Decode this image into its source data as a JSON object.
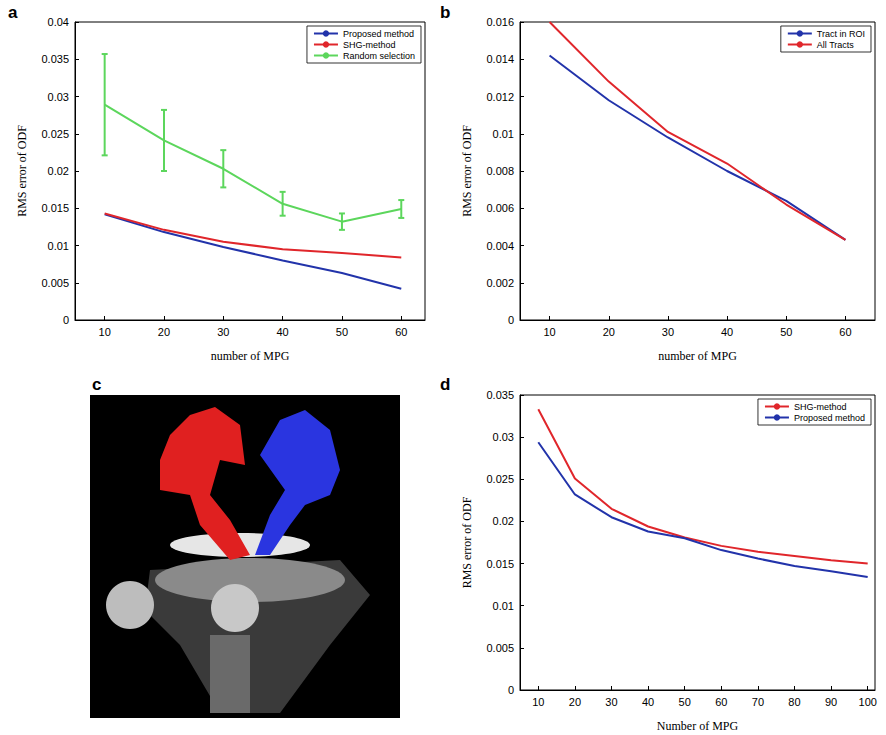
{
  "chart_data": [
    {
      "type": "line",
      "panel": "a",
      "x_label": "number of MPG",
      "y_label": "RMS error of ODF",
      "x": [
        10,
        20,
        30,
        40,
        50,
        60
      ],
      "series": [
        {
          "name": "Proposed method",
          "color": "#2233aa",
          "values": [
            0.0142,
            0.0118,
            0.0098,
            0.008,
            0.0063,
            0.0042
          ]
        },
        {
          "name": "SHG-method",
          "color": "#e0262b",
          "values": [
            0.0143,
            0.0121,
            0.0105,
            0.0095,
            0.009,
            0.0084
          ]
        },
        {
          "name": "Random selection",
          "color": "#5cd65c",
          "values": [
            0.0289,
            0.0241,
            0.0203,
            0.0156,
            0.0132,
            0.0149
          ],
          "errors": [
            0.0068,
            0.0041,
            0.0025,
            0.0016,
            0.0011,
            0.0012
          ]
        }
      ],
      "xlim": [
        5,
        64
      ],
      "xticks": [
        10,
        20,
        30,
        40,
        50,
        60
      ],
      "ylim": [
        0,
        0.04
      ],
      "yticks": [
        0,
        0.005,
        0.01,
        0.015,
        0.02,
        0.025,
        0.03,
        0.035,
        0.04
      ],
      "grid": false,
      "legend": "upper right"
    },
    {
      "type": "line",
      "panel": "b",
      "x_label": "number of MPG",
      "y_label": "RMS error of ODF",
      "x": [
        10,
        20,
        30,
        40,
        50,
        60
      ],
      "series": [
        {
          "name": "Tract in ROI",
          "color": "#2233aa",
          "values": [
            0.0142,
            0.0118,
            0.0098,
            0.008,
            0.0064,
            0.0043
          ]
        },
        {
          "name": "All Tracts",
          "color": "#e0262b",
          "values": [
            0.016,
            0.0128,
            0.0101,
            0.0084,
            0.0062,
            0.0043
          ]
        }
      ],
      "xlim": [
        5,
        65
      ],
      "xticks": [
        10,
        20,
        30,
        40,
        50,
        60
      ],
      "ylim": [
        0,
        0.016
      ],
      "yticks": [
        0,
        0.002,
        0.004,
        0.006,
        0.008,
        0.01,
        0.012,
        0.014,
        0.016
      ],
      "grid": false,
      "legend": "upper right"
    },
    {
      "type": "image",
      "panel": "c"
    },
    {
      "type": "line",
      "panel": "d",
      "x_label": "Number of MPG",
      "y_label": "RMS error of ODF",
      "x": [
        10,
        20,
        30,
        40,
        50,
        60,
        70,
        80,
        90,
        100
      ],
      "series": [
        {
          "name": "SHG-method",
          "color": "#e0262b",
          "values": [
            0.0333,
            0.0251,
            0.0215,
            0.0194,
            0.0181,
            0.0171,
            0.0164,
            0.0159,
            0.0154,
            0.015
          ]
        },
        {
          "name": "Proposed method",
          "color": "#2233aa",
          "values": [
            0.0294,
            0.0232,
            0.0205,
            0.0188,
            0.018,
            0.0166,
            0.0156,
            0.0147,
            0.0141,
            0.0134
          ]
        }
      ],
      "xlim": [
        5,
        102
      ],
      "xticks": [
        10,
        20,
        30,
        40,
        50,
        60,
        70,
        80,
        90,
        100
      ],
      "ylim": [
        0,
        0.035
      ],
      "yticks": [
        0,
        0.005,
        0.01,
        0.015,
        0.02,
        0.025,
        0.03,
        0.035
      ],
      "grid": false,
      "legend": "upper right"
    }
  ]
}
